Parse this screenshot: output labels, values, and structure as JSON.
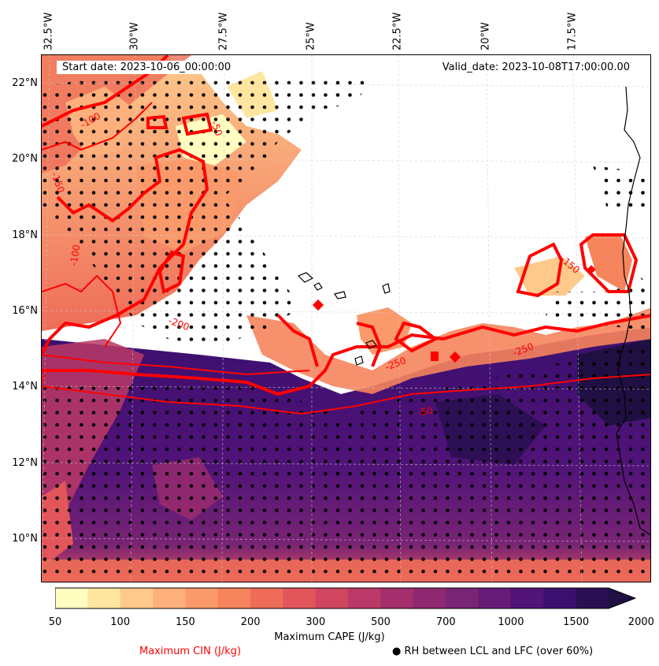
{
  "map": {
    "start_date": "Start date: 2023-10-06_00:00:00",
    "valid_date": "Valid_date: 2023-10-08T17:00:00.00",
    "lon_labels": [
      "32.5°W",
      "30°W",
      "27.5°W",
      "25°W",
      "22.5°W",
      "20°W",
      "17.5°W"
    ],
    "lat_labels": [
      "22°N",
      "20°N",
      "18°N",
      "16°N",
      "14°N",
      "12°N",
      "10°N"
    ],
    "cin_contour_labels": [
      "-100",
      "-150",
      "-50",
      "-250",
      "-200",
      "-50",
      "-250",
      "-150",
      "-50",
      "-100"
    ]
  },
  "colorbar": {
    "label": "Maximum CAPE (J/kg)",
    "ticks": [
      "50",
      "100",
      "150",
      "200",
      "300",
      "500",
      "700",
      "1000",
      "1500",
      "2000"
    ],
    "colors": [
      "#fffdc0",
      "#fee5a0",
      "#fec98a",
      "#feb07c",
      "#fa9a6b",
      "#f6845d",
      "#ee6c58",
      "#e2555a",
      "#d0455f",
      "#bb3966",
      "#a52f6c",
      "#8f2871",
      "#792474",
      "#661c77",
      "#511378",
      "#3b0f6f",
      "#2a0f52",
      "#1f0f42"
    ]
  },
  "legend": {
    "cin_label": "Maximum CIN (J/kg)",
    "rh_label": "RH between LCL and LFC (over 60%)",
    "rh_marker": "●"
  },
  "colors": {
    "cin_contour": "#ff0000",
    "coast": "#000000",
    "grid": "#cccccc"
  }
}
